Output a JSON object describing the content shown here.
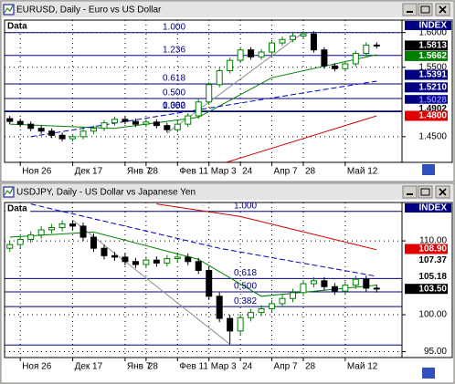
{
  "chart_data": [
    {
      "type": "candlestick",
      "title": "EURUSD, Daily - Euro vs US Dollar",
      "data_label": "Data",
      "index_label": "INDEX",
      "categories": [
        null,
        "Ноя 26",
        null,
        null,
        null,
        null,
        "Дек 17",
        null,
        null,
        null,
        null,
        "Янв 7",
        null,
        "28",
        null,
        null,
        "Фев 11",
        null,
        null,
        "Мар 3",
        null,
        null,
        "24",
        null,
        null,
        "Апр 7",
        null,
        null,
        "28",
        null,
        null,
        null,
        "Май 12",
        null,
        null,
        null
      ],
      "open": [
        1.476,
        1.472,
        1.468,
        1.462,
        1.458,
        1.452,
        1.447,
        1.45,
        1.458,
        1.462,
        1.47,
        1.475,
        1.472,
        1.468,
        1.471,
        1.466,
        1.46,
        1.468,
        1.48,
        1.5,
        1.525,
        1.545,
        1.56,
        1.575,
        1.565,
        1.572,
        1.585,
        1.59,
        1.595,
        1.598,
        1.575,
        1.552,
        1.548,
        1.555,
        1.57,
        1.582
      ],
      "high": [
        1.48,
        1.476,
        1.472,
        1.466,
        1.462,
        1.456,
        1.454,
        1.462,
        1.466,
        1.474,
        1.479,
        1.479,
        1.476,
        1.475,
        1.475,
        1.47,
        1.472,
        1.484,
        1.504,
        1.529,
        1.549,
        1.564,
        1.579,
        1.579,
        1.576,
        1.589,
        1.594,
        1.599,
        1.602,
        1.602,
        1.579,
        1.556,
        1.559,
        1.574,
        1.586,
        1.586
      ],
      "low": [
        1.468,
        1.464,
        1.458,
        1.454,
        1.448,
        1.443,
        1.443,
        1.446,
        1.454,
        1.458,
        1.466,
        1.468,
        1.464,
        1.464,
        1.462,
        1.456,
        1.456,
        1.464,
        1.476,
        1.496,
        1.521,
        1.541,
        1.556,
        1.561,
        1.561,
        1.568,
        1.581,
        1.586,
        1.591,
        1.571,
        1.548,
        1.544,
        1.544,
        1.551,
        1.566,
        1.577
      ],
      "close": [
        1.472,
        1.468,
        1.462,
        1.458,
        1.452,
        1.447,
        1.45,
        1.458,
        1.462,
        1.47,
        1.475,
        1.472,
        1.468,
        1.471,
        1.466,
        1.46,
        1.468,
        1.48,
        1.5,
        1.525,
        1.545,
        1.56,
        1.575,
        1.565,
        1.572,
        1.585,
        1.59,
        1.595,
        1.598,
        1.575,
        1.552,
        1.548,
        1.555,
        1.57,
        1.582,
        1.581
      ],
      "color_up": "#008000",
      "color_down": "#000000",
      "ylim": [
        1.413,
        1.618
      ],
      "yticks": [
        {
          "value": 1.6,
          "label": "1.6000"
        },
        {
          "value": 1.55,
          "label": "1.5500"
        },
        {
          "value": 1.45,
          "label": "1.4500"
        }
      ],
      "grid": true,
      "levels": [
        {
          "label": "1.000",
          "value": 1.6
        },
        {
          "label": "1.236",
          "value": 1.567
        },
        {
          "label": "0.618",
          "value": 1.526
        },
        {
          "label": "0.500",
          "value": 1.505
        },
        {
          "label": "0.382",
          "value": 1.487
        },
        {
          "label": "1.000",
          "value": 1.486
        }
      ],
      "level_color": "#000080",
      "lines": [
        {
          "color": "#008000",
          "dash": false,
          "x": [
            0,
            10,
            18,
            25,
            35
          ],
          "values": [
            1.468,
            1.462,
            1.478,
            1.535,
            1.568
          ]
        },
        {
          "color": "#0000c0",
          "dash": true,
          "x": [
            2,
            35
          ],
          "values": [
            1.45,
            1.53
          ]
        },
        {
          "color": "#d00000",
          "dash": false,
          "x": [
            20,
            35
          ],
          "values": [
            1.41,
            1.48
          ]
        },
        {
          "color": "#909090",
          "dash": false,
          "x": [
            15,
            28
          ],
          "values": [
            1.455,
            1.6
          ]
        }
      ],
      "markers": [
        {
          "value": 1.5813,
          "label": "1.5813",
          "bg": "#000000",
          "fg": "#ffffff"
        },
        {
          "value": 1.5662,
          "label": "1.5662",
          "bg": "#008000",
          "fg": "#ffffff"
        },
        {
          "value": 1.5391,
          "label": "1.5391",
          "bg": "#000080",
          "fg": "#ffffff"
        },
        {
          "value": 1.521,
          "label": "1.5210",
          "bg": "#000080",
          "fg": "#ffffff"
        },
        {
          "value": 1.5028,
          "label": "1.5028",
          "bg": "#000080",
          "fg": "#8080ff"
        },
        {
          "value": 1.4902,
          "label": "1.4902",
          "bg": "#ffffff",
          "fg": "#000000"
        },
        {
          "value": 1.48,
          "label": "1.4800",
          "bg": "#e00000",
          "fg": "#ffffff"
        }
      ]
    },
    {
      "type": "candlestick",
      "title": "USDJPY, Daily - US Dollar vs Japanese Yen",
      "data_label": "Data",
      "index_label": "INDEX",
      "categories": [
        null,
        "Ноя 26",
        null,
        null,
        null,
        null,
        "Дек 17",
        null,
        null,
        null,
        null,
        "Янв 7",
        null,
        "28",
        null,
        null,
        "Фев 11",
        null,
        null,
        "Мар 3",
        null,
        null,
        "24",
        null,
        null,
        "Апр 7",
        null,
        null,
        "28",
        null,
        null,
        null,
        "Май 12",
        null,
        null,
        null
      ],
      "open": [
        109.0,
        109.5,
        110.2,
        110.8,
        111.5,
        111.8,
        112.3,
        112.0,
        110.5,
        109.0,
        108.0,
        107.8,
        107.2,
        106.8,
        107.4,
        107.0,
        107.6,
        107.8,
        107.2,
        106.0,
        102.5,
        99.5,
        97.8,
        99.6,
        100.3,
        100.8,
        101.5,
        102.2,
        103.0,
        104.2,
        104.6,
        103.8,
        103.2,
        104.0,
        104.8,
        103.6
      ],
      "high": [
        110.0,
        110.7,
        111.3,
        112.0,
        112.3,
        112.8,
        112.8,
        112.5,
        111.0,
        109.5,
        108.5,
        108.3,
        107.7,
        107.9,
        107.9,
        108.1,
        108.3,
        108.3,
        107.7,
        106.5,
        103.0,
        100.0,
        100.1,
        100.8,
        101.3,
        102.0,
        102.7,
        103.5,
        104.7,
        105.1,
        105.1,
        104.3,
        104.5,
        105.3,
        105.3,
        104.1
      ],
      "low": [
        108.5,
        109.0,
        109.7,
        110.3,
        111.0,
        111.3,
        111.5,
        110.0,
        108.5,
        107.5,
        107.3,
        106.7,
        106.3,
        106.3,
        106.5,
        106.5,
        107.1,
        106.7,
        105.5,
        102.0,
        99.0,
        96.0,
        97.3,
        99.1,
        99.8,
        100.3,
        101.0,
        101.7,
        102.5,
        103.7,
        103.3,
        102.7,
        102.7,
        103.5,
        103.1,
        103.0
      ],
      "close": [
        109.5,
        110.2,
        110.8,
        111.5,
        111.8,
        112.3,
        112.0,
        110.5,
        109.0,
        108.0,
        107.8,
        107.2,
        106.8,
        107.4,
        107.0,
        107.6,
        107.8,
        107.2,
        106.0,
        102.5,
        99.5,
        97.8,
        99.6,
        100.3,
        100.8,
        101.5,
        102.2,
        103.0,
        104.2,
        104.6,
        103.8,
        103.2,
        104.0,
        104.8,
        103.6,
        103.5
      ],
      "color_up": "#008000",
      "color_down": "#000000",
      "ylim": [
        94.2,
        115.2
      ],
      "yticks": [
        {
          "value": 110,
          "label": "110.00"
        },
        {
          "value": 100,
          "label": "100.00"
        },
        {
          "value": 95,
          "label": "95.00"
        }
      ],
      "grid": true,
      "levels": [
        {
          "label": "1.000",
          "value": 114.0
        },
        {
          "label": "0.618",
          "value": 104.9
        },
        {
          "label": "0.500",
          "value": 103.1
        },
        {
          "label": "0.382",
          "value": 101.1
        },
        {
          "label": null,
          "value": 95.9
        }
      ],
      "level_color": "#000080",
      "lines": [
        {
          "color": "#d00000",
          "dash": false,
          "x": [
            14,
            22,
            35
          ],
          "values": [
            115.0,
            113.3,
            108.8
          ]
        },
        {
          "color": "#0000c0",
          "dash": true,
          "x": [
            2,
            20,
            35
          ],
          "values": [
            115.0,
            109.0,
            105.2
          ]
        },
        {
          "color": "#008000",
          "dash": false,
          "x": [
            0,
            8,
            18,
            24,
            35
          ],
          "values": [
            110.5,
            111.2,
            107.5,
            102.5,
            104.0
          ]
        },
        {
          "color": "#909090",
          "dash": false,
          "x": [
            6,
            21
          ],
          "values": [
            112.8,
            96.0
          ]
        }
      ],
      "markers": [
        {
          "value": 108.9,
          "label": "108.90",
          "bg": "#e00000",
          "fg": "#ffffff"
        },
        {
          "value": 107.37,
          "label": "107.37",
          "bg": "#ffffff",
          "fg": "#000000"
        },
        {
          "value": 105.18,
          "label": "105.18",
          "bg": "#ffffff",
          "fg": "#000000"
        },
        {
          "value": 103.5,
          "label": "103.50",
          "bg": "#000000",
          "fg": "#ffffff"
        }
      ]
    }
  ]
}
